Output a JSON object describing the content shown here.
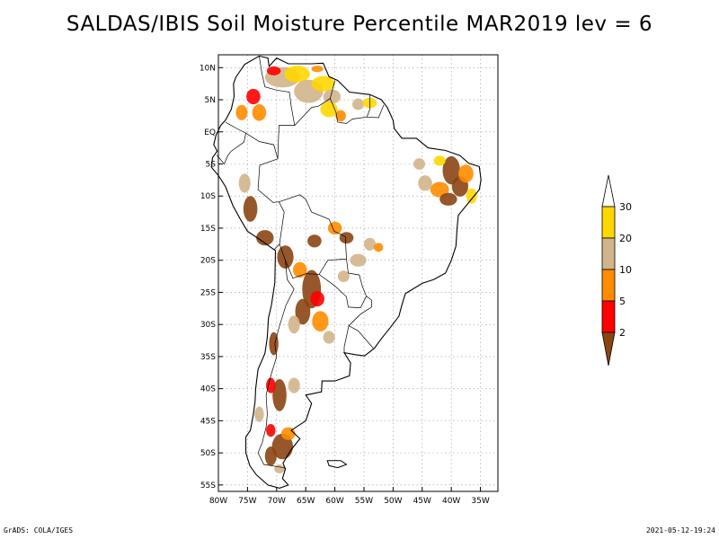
{
  "title": "SALDAS/IBIS Soil Moisture Percentile MAR2019 lev = 6",
  "footer": {
    "left": "GrADS: COLA/IGES",
    "right": "2021-05-12-19:24"
  },
  "map": {
    "lon_range": [
      -80,
      -32
    ],
    "lat_range": [
      -56,
      12
    ],
    "lat_ticks": [
      {
        "value": 10,
        "label": "10N"
      },
      {
        "value": 5,
        "label": "5N"
      },
      {
        "value": 0,
        "label": "EQ"
      },
      {
        "value": -5,
        "label": "5S"
      },
      {
        "value": -10,
        "label": "10S"
      },
      {
        "value": -15,
        "label": "15S"
      },
      {
        "value": -20,
        "label": "20S"
      },
      {
        "value": -25,
        "label": "25S"
      },
      {
        "value": -30,
        "label": "30S"
      },
      {
        "value": -35,
        "label": "35S"
      },
      {
        "value": -40,
        "label": "40S"
      },
      {
        "value": -45,
        "label": "45S"
      },
      {
        "value": -50,
        "label": "50S"
      },
      {
        "value": -55,
        "label": "55S"
      }
    ],
    "lon_ticks": [
      {
        "value": -80,
        "label": "80W"
      },
      {
        "value": -75,
        "label": "75W"
      },
      {
        "value": -70,
        "label": "70W"
      },
      {
        "value": -65,
        "label": "65W"
      },
      {
        "value": -60,
        "label": "60W"
      },
      {
        "value": -55,
        "label": "55W"
      },
      {
        "value": -50,
        "label": "50W"
      },
      {
        "value": -45,
        "label": "45W"
      },
      {
        "value": -40,
        "label": "40W"
      },
      {
        "value": -35,
        "label": "35W"
      }
    ],
    "grid": true
  },
  "colorbar": {
    "levels": [
      "2",
      "5",
      "10",
      "20",
      "30"
    ],
    "colors": {
      "below_2": "#8B4513",
      "2_5": "#FF0000",
      "5_10": "#FF8C00",
      "10_20": "#D2B48C",
      "20_30": "#FFD700",
      "above_30": "#FFFFFF"
    }
  },
  "colors": {
    "coast": "#000000",
    "grid": "#999999",
    "dry_extreme": "#8B4513",
    "dry_severe": "#FF0000",
    "dry_moderate": "#FF8C00",
    "dry_mild": "#D2B48C",
    "dry_slight": "#FFD700"
  }
}
